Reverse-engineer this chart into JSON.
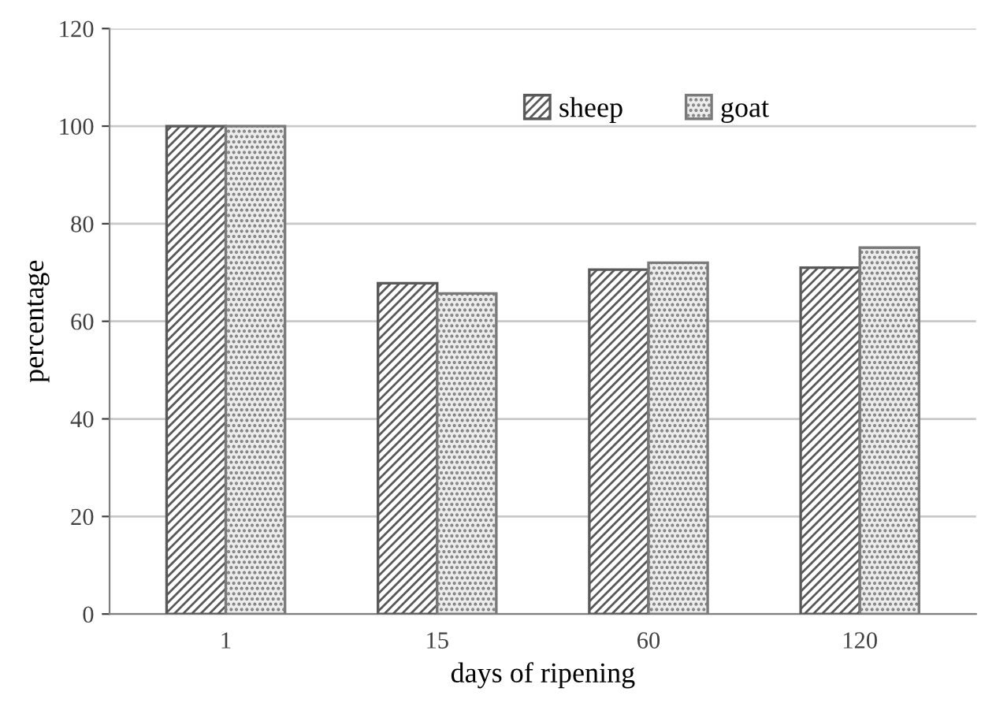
{
  "chart_data": {
    "type": "bar",
    "xlabel": "days of ripening",
    "ylabel": "percentage",
    "categories": [
      "1",
      "15",
      "60",
      "120"
    ],
    "series": [
      {
        "name": "sheep",
        "color": "#595959",
        "values": [
          100,
          67.8,
          70.6,
          71.0
        ]
      },
      {
        "name": "goat",
        "color": "#7a7a7a",
        "values": [
          100,
          65.7,
          72.0,
          75.1
        ]
      }
    ],
    "ylim": [
      0,
      120
    ],
    "yticks": [
      0,
      20,
      40,
      60,
      80,
      100,
      120
    ],
    "grid": "y",
    "legend": "top right"
  }
}
